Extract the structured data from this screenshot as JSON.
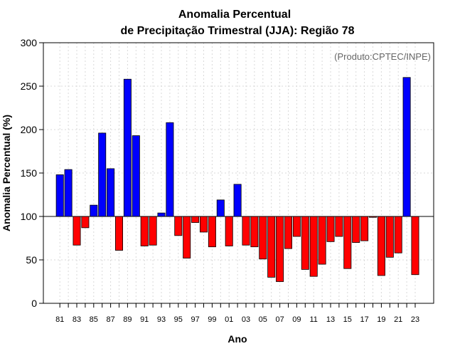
{
  "chart_data": {
    "type": "bar",
    "title_line1": "Anomalia Percentual",
    "title_line2": "de Precipitação Trimestral (JJA): Região 78",
    "xlabel": "Ano",
    "ylabel": "Anomalia Percentual (%)",
    "credit": "(Produto:CPTEC/INPE)",
    "baseline": 100,
    "ylim": [
      0,
      300
    ],
    "yticks": [
      0,
      50,
      100,
      150,
      200,
      250,
      300
    ],
    "years": [
      1981,
      1982,
      1983,
      1984,
      1985,
      1986,
      1987,
      1988,
      1989,
      1990,
      1991,
      1992,
      1993,
      1994,
      1995,
      1996,
      1997,
      1998,
      1999,
      2000,
      2001,
      2002,
      2003,
      2004,
      2005,
      2006,
      2007,
      2008,
      2009,
      2010,
      2011,
      2012,
      2013,
      2014,
      2015,
      2016,
      2017,
      2018,
      2019,
      2020,
      2021,
      2022,
      2023
    ],
    "xtick_labels": [
      "81",
      "83",
      "85",
      "87",
      "89",
      "91",
      "93",
      "95",
      "97",
      "99",
      "01",
      "03",
      "05",
      "07",
      "09",
      "11",
      "13",
      "15",
      "17",
      "19",
      "21",
      "23"
    ],
    "values": [
      148,
      154,
      67,
      87,
      113,
      196,
      155,
      61,
      258,
      193,
      66,
      67,
      104,
      208,
      78,
      52,
      93,
      82,
      65,
      119,
      66,
      137,
      67,
      65,
      51,
      30,
      25,
      63,
      77,
      39,
      31,
      45,
      71,
      77,
      40,
      70,
      72,
      99,
      32,
      53,
      58,
      260,
      33
    ],
    "colors": {
      "above": "#0000ff",
      "below": "#ff0000",
      "edge": "#000000"
    }
  }
}
